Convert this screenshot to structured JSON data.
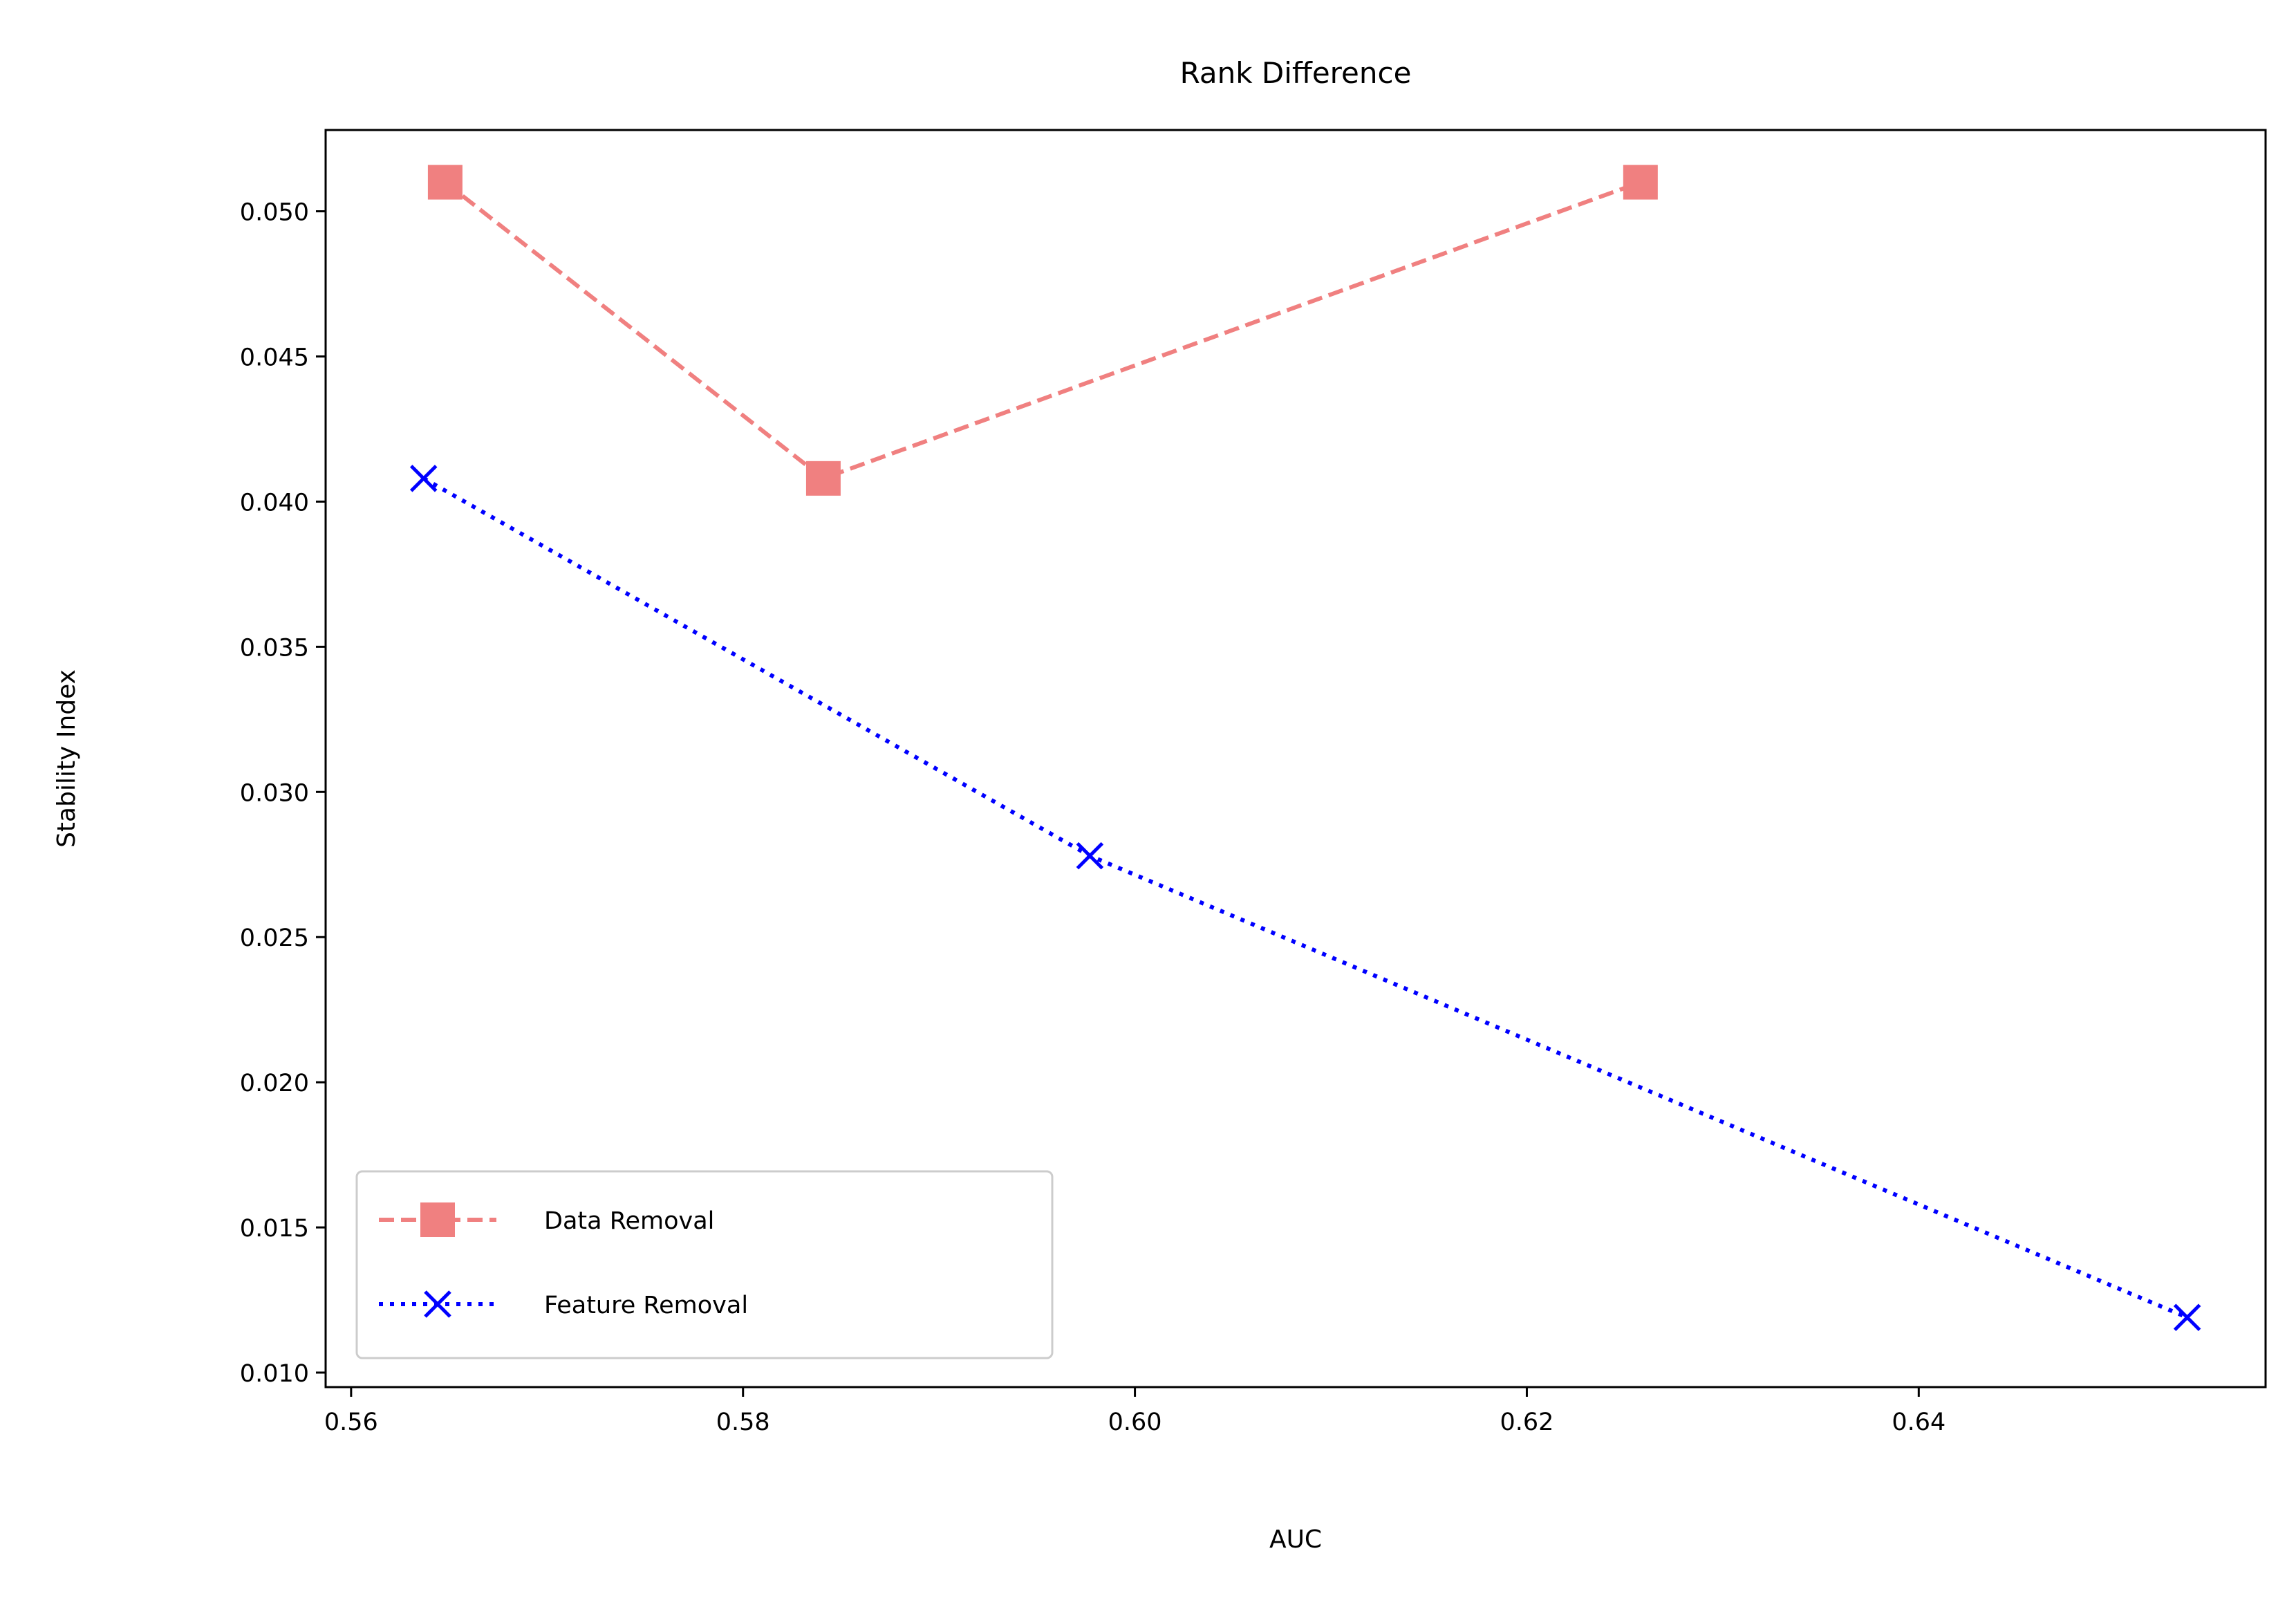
{
  "chart_data": {
    "type": "line",
    "title": "Rank Difference",
    "xlabel": "AUC",
    "ylabel": "Stability Index",
    "xlim": [
      0.5587,
      0.6577
    ],
    "ylim": [
      0.0095,
      0.0528
    ],
    "xticks": [
      0.56,
      0.58,
      0.6,
      0.62,
      0.64
    ],
    "xtick_labels": [
      "0.56",
      "0.58",
      "0.60",
      "0.62",
      "0.64"
    ],
    "yticks": [
      0.01,
      0.015,
      0.02,
      0.025,
      0.03,
      0.035,
      0.04,
      0.045,
      0.05
    ],
    "ytick_labels": [
      "0.010",
      "0.015",
      "0.020",
      "0.025",
      "0.030",
      "0.035",
      "0.040",
      "0.045",
      "0.050"
    ],
    "grid": false,
    "legend_position": "lower-left",
    "series": [
      {
        "name": "Data Removal",
        "color": "#f08080",
        "line_style": "dashed",
        "marker": "square",
        "x": [
          0.5648,
          0.5841,
          0.6258
        ],
        "y": [
          0.051,
          0.0408,
          0.051
        ]
      },
      {
        "name": "Feature Removal",
        "color": "#0000ff",
        "line_style": "dotted",
        "marker": "x",
        "x": [
          0.5637,
          0.5977,
          0.6537
        ],
        "y": [
          0.0408,
          0.0278,
          0.0119
        ]
      }
    ]
  }
}
